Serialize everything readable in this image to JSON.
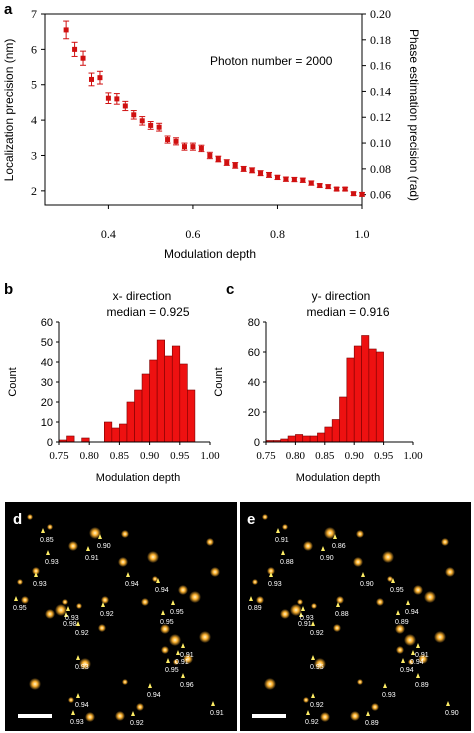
{
  "panel_labels": {
    "a": "a",
    "b": "b",
    "c": "c",
    "d": "d",
    "e": "e"
  },
  "colors": {
    "marker": "#d01010",
    "bar": "#ee1111",
    "bar_edge": "#7a0000",
    "axis": "#000000",
    "micro_bg": "#000000",
    "spot": "#ffb330",
    "arrow": "#ffee66",
    "scale_bar": "#ffffff"
  },
  "chart_data": [
    {
      "type": "scatter",
      "panel": "a",
      "annotation": "Photon number = 2000",
      "xlabel": "Modulation depth",
      "ylabel": "Localization precision (nm)",
      "y2label": "Phase estimation precision (rad)",
      "xlim": [
        0.25,
        1.0
      ],
      "ylim": [
        1.6,
        7.0
      ],
      "y2lim": [
        0.052,
        0.2
      ],
      "xticks": [
        "0.4",
        "0.6",
        "0.8",
        "1.0"
      ],
      "xtick_values": [
        0.4,
        0.6,
        0.8,
        1.0
      ],
      "yticks": [
        "2",
        "3",
        "4",
        "5",
        "6",
        "7"
      ],
      "ytick_values": [
        2,
        3,
        4,
        5,
        6,
        7
      ],
      "y2ticks": [
        "0.06",
        "0.08",
        "0.10",
        "0.12",
        "0.14",
        "0.16",
        "0.18",
        "0.20"
      ],
      "y2tick_values": [
        0.06,
        0.08,
        0.1,
        0.12,
        0.14,
        0.16,
        0.18,
        0.2
      ],
      "x": [
        0.3,
        0.32,
        0.34,
        0.36,
        0.38,
        0.4,
        0.42,
        0.44,
        0.46,
        0.48,
        0.5,
        0.52,
        0.54,
        0.56,
        0.58,
        0.6,
        0.62,
        0.64,
        0.66,
        0.68,
        0.7,
        0.72,
        0.74,
        0.76,
        0.78,
        0.8,
        0.82,
        0.84,
        0.86,
        0.88,
        0.9,
        0.92,
        0.94,
        0.96,
        0.98,
        1.0
      ],
      "y": [
        6.55,
        6.0,
        5.75,
        5.15,
        5.2,
        4.62,
        4.6,
        4.4,
        4.15,
        3.98,
        3.85,
        3.8,
        3.45,
        3.4,
        3.25,
        3.25,
        3.2,
        3.0,
        2.9,
        2.8,
        2.72,
        2.62,
        2.58,
        2.5,
        2.45,
        2.38,
        2.33,
        2.32,
        2.3,
        2.22,
        2.15,
        2.12,
        2.05,
        2.05,
        1.92,
        1.9
      ],
      "err": [
        0.25,
        0.2,
        0.2,
        0.18,
        0.18,
        0.15,
        0.15,
        0.13,
        0.12,
        0.12,
        0.11,
        0.11,
        0.1,
        0.1,
        0.1,
        0.1,
        0.09,
        0.09,
        0.08,
        0.08,
        0.08,
        0.07,
        0.07,
        0.07,
        0.07,
        0.06,
        0.06,
        0.06,
        0.06,
        0.06,
        0.05,
        0.05,
        0.05,
        0.05,
        0.05,
        0.05
      ]
    },
    {
      "type": "bar",
      "panel": "b",
      "title": "x- direction",
      "subtitle": "median = 0.925",
      "xlabel": "Modulation depth",
      "ylabel": "Count",
      "xlim": [
        0.75,
        1.0
      ],
      "ylim": [
        0,
        60
      ],
      "xticks": [
        "0.75",
        "0.80",
        "0.85",
        "0.90",
        "0.95",
        "1.00"
      ],
      "xtick_values": [
        0.75,
        0.8,
        0.85,
        0.9,
        0.95,
        1.0
      ],
      "yticks": [
        "0",
        "10",
        "20",
        "30",
        "40",
        "50",
        "60"
      ],
      "ytick_values": [
        0,
        10,
        20,
        30,
        40,
        50,
        60
      ],
      "bin_start": 0.75,
      "bin_width": 0.0125,
      "values": [
        1,
        3,
        0,
        2,
        0,
        0,
        10,
        7,
        9,
        20,
        26,
        34,
        41,
        51,
        43,
        48,
        39,
        26
      ]
    },
    {
      "type": "bar",
      "panel": "c",
      "title": "y- direction",
      "subtitle": "median = 0.916",
      "xlabel": "Modulation depth",
      "ylabel": "Count",
      "xlim": [
        0.75,
        1.0
      ],
      "ylim": [
        0,
        80
      ],
      "xticks": [
        "0.75",
        "0.80",
        "0.85",
        "0.90",
        "0.95",
        "1.00"
      ],
      "xtick_values": [
        0.75,
        0.8,
        0.85,
        0.9,
        0.95,
        1.0
      ],
      "yticks": [
        "0",
        "20",
        "40",
        "60",
        "80"
      ],
      "ytick_values": [
        0,
        20,
        40,
        60,
        80
      ],
      "bin_start": 0.75,
      "bin_width": 0.0125,
      "values": [
        1,
        1,
        2,
        4,
        5,
        4,
        4,
        6,
        10,
        15,
        30,
        56,
        64,
        71,
        62,
        60
      ]
    }
  ],
  "micrographs": {
    "d": {
      "labels": [
        "0.85",
        "0.93",
        "0.91",
        "0.90",
        "0.93",
        "0.95",
        "0.98",
        "0.93",
        "0.92",
        "0.92",
        "0.94",
        "0.94",
        "0.95",
        "0.95",
        "0.91",
        "0.91",
        "0.96",
        "0.95",
        "0.94",
        "0.93",
        "0.94",
        "0.93",
        "0.92",
        "0.91"
      ]
    },
    "e": {
      "labels": [
        "0.91",
        "0.88",
        "0.90",
        "0.86",
        "0.93",
        "0.89",
        "0.91",
        "0.93",
        "0.92",
        "0.88",
        "0.90",
        "0.95",
        "0.94",
        "0.89",
        "0.91",
        "0.94",
        "0.89",
        "0.94",
        "0.93",
        "0.95",
        "0.92",
        "0.92",
        "0.89",
        "0.90"
      ]
    }
  }
}
